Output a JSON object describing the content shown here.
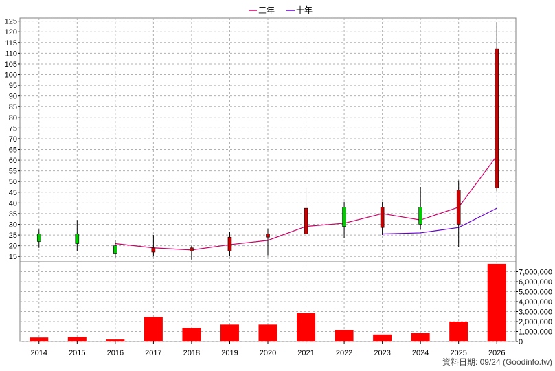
{
  "chart_data": {
    "type": "candlestick+line+bar",
    "categories": [
      "2014",
      "2015",
      "2016",
      "2017",
      "2018",
      "2019",
      "2020",
      "2021",
      "2022",
      "2023",
      "2024",
      "2025",
      "2026"
    ],
    "legend": [
      {
        "name": "三年",
        "color": "#cc0066"
      },
      {
        "name": "十年",
        "color": "#6600cc"
      }
    ],
    "price_axis": {
      "min": 15,
      "max": 125,
      "step": 5,
      "position": "left"
    },
    "volume_axis": {
      "min": 0,
      "max": 7000000,
      "step": 1000000,
      "position": "right",
      "tick_labels": [
        "0",
        "1,000,000",
        "2,000,000",
        "3,000,000",
        "4,000,000",
        "5,000,000",
        "6,000,000",
        "7,000,000"
      ]
    },
    "candles": [
      {
        "x": "2014",
        "open": 22,
        "close": 25.5,
        "high": 27.5,
        "low": 19
      },
      {
        "x": "2015",
        "open": 21,
        "close": 25.5,
        "high": 32,
        "low": 17.5
      },
      {
        "x": "2016",
        "open": 16.5,
        "close": 20,
        "high": 22.5,
        "low": 14.5
      },
      {
        "x": "2017",
        "open": 19,
        "close": 17,
        "high": 25,
        "low": 15
      },
      {
        "x": "2018",
        "open": 19,
        "close": 17.5,
        "high": 20,
        "low": 13.5
      },
      {
        "x": "2019",
        "open": 24,
        "close": 17.5,
        "high": 26.5,
        "low": 15
      },
      {
        "x": "2020",
        "open": 25.5,
        "close": 24,
        "high": 28,
        "low": 15.5
      },
      {
        "x": "2021",
        "open": 37.5,
        "close": 25.5,
        "high": 47,
        "low": 24
      },
      {
        "x": "2022",
        "open": 29,
        "close": 38,
        "high": 40.5,
        "low": 23.5
      },
      {
        "x": "2023",
        "open": 38,
        "close": 28.5,
        "high": 40.5,
        "low": 25
      },
      {
        "x": "2024",
        "open": 30,
        "close": 38,
        "high": 47.5,
        "low": 27.5
      },
      {
        "x": "2025",
        "open": 46,
        "close": 30,
        "high": 50.5,
        "low": 19.5
      },
      {
        "x": "2026",
        "open": 112,
        "close": 47,
        "high": 124.5,
        "low": 45.5
      }
    ],
    "series": [
      {
        "name": "三年",
        "values": [
          null,
          null,
          21,
          19,
          18,
          20.5,
          22.5,
          29,
          30.5,
          35,
          32,
          38,
          62
        ]
      },
      {
        "name": "十年",
        "values": [
          null,
          null,
          null,
          null,
          null,
          null,
          null,
          null,
          null,
          25.5,
          26,
          28.5,
          37.5
        ]
      }
    ],
    "volume": [
      400000,
      450000,
      200000,
      2450000,
      1350000,
      1700000,
      1700000,
      2850000,
      1150000,
      700000,
      850000,
      2000000,
      7800000
    ],
    "colors": {
      "up": "#00cc00",
      "down": "#cc0000",
      "volume": "#ff0000",
      "grid": "#b0b0b0",
      "wick": "#000000"
    }
  },
  "footer": "資料日期: 09/24  (Goodinfo.tw)"
}
